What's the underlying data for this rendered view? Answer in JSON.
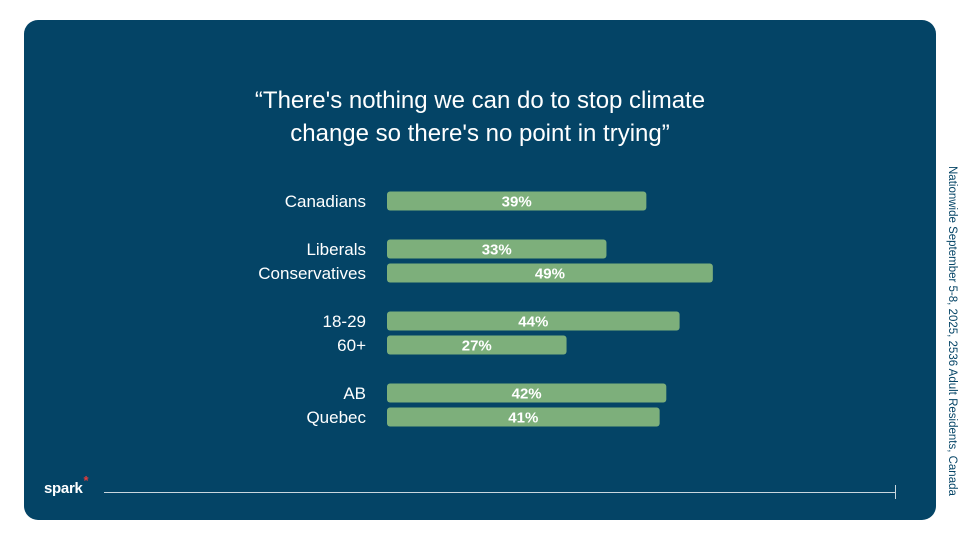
{
  "chart_data": {
    "type": "bar",
    "orientation": "horizontal",
    "title_lines": [
      "“There's nothing we can do to stop climate",
      "change so there's no point in trying”"
    ],
    "categories": [
      "Canadians",
      "Liberals",
      "Conservatives",
      "18-29",
      "60+",
      "AB",
      "Quebec"
    ],
    "values": [
      39,
      33,
      49,
      44,
      27,
      42,
      41
    ],
    "value_labels": [
      "39%",
      "33%",
      "49%",
      "44%",
      "27%",
      "42%",
      "41%"
    ],
    "groups": [
      [
        0
      ],
      [
        1,
        2
      ],
      [
        3,
        4
      ],
      [
        5,
        6
      ]
    ],
    "xlim": [
      0,
      60
    ],
    "bar_color": "#7daf7b",
    "label_color": "#ffffff"
  },
  "footer": {
    "brand": "spark",
    "brand_mark": "*"
  },
  "side_note": "Nationwide September 5-8, 2025, 2536 Adult Residents, Canada",
  "colors": {
    "background": "#044466",
    "accent_star": "#e23c3c"
  }
}
